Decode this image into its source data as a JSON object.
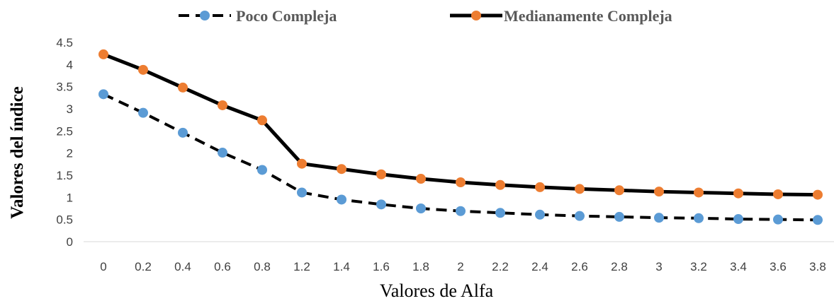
{
  "chart_data": {
    "type": "line",
    "xlabel": "Valores de Alfa",
    "ylabel": "Valores del índice",
    "ylim": [
      0,
      4.5
    ],
    "y_ticks": [
      "0",
      "0.5",
      "1",
      "1.5",
      "2",
      "2.5",
      "3",
      "3.5",
      "4",
      "4.5"
    ],
    "categories": [
      "0",
      "0.2",
      "0.4",
      "0.6",
      "0.8",
      "1.2",
      "1.4",
      "1.6",
      "1.8",
      "2",
      "2.2",
      "2.4",
      "2.6",
      "2.8",
      "3",
      "3.2",
      "3.4",
      "3.6",
      "3.8"
    ],
    "legend_position": "top",
    "grid": false,
    "series": [
      {
        "name": "Poco Compleja",
        "line_style": "dashed",
        "line_color": "#000000",
        "marker_color": "#5B9BD5",
        "values": [
          3.33,
          2.91,
          2.46,
          2.01,
          1.62,
          1.11,
          0.95,
          0.84,
          0.75,
          0.69,
          0.65,
          0.61,
          0.58,
          0.56,
          0.54,
          0.53,
          0.51,
          0.5,
          0.49
        ]
      },
      {
        "name": "Medianamente Compleja",
        "line_style": "solid",
        "line_color": "#000000",
        "marker_color": "#ED7D31",
        "values": [
          4.23,
          3.88,
          3.48,
          3.08,
          2.74,
          1.76,
          1.64,
          1.52,
          1.42,
          1.34,
          1.28,
          1.23,
          1.19,
          1.16,
          1.13,
          1.11,
          1.09,
          1.07,
          1.06
        ]
      }
    ]
  }
}
